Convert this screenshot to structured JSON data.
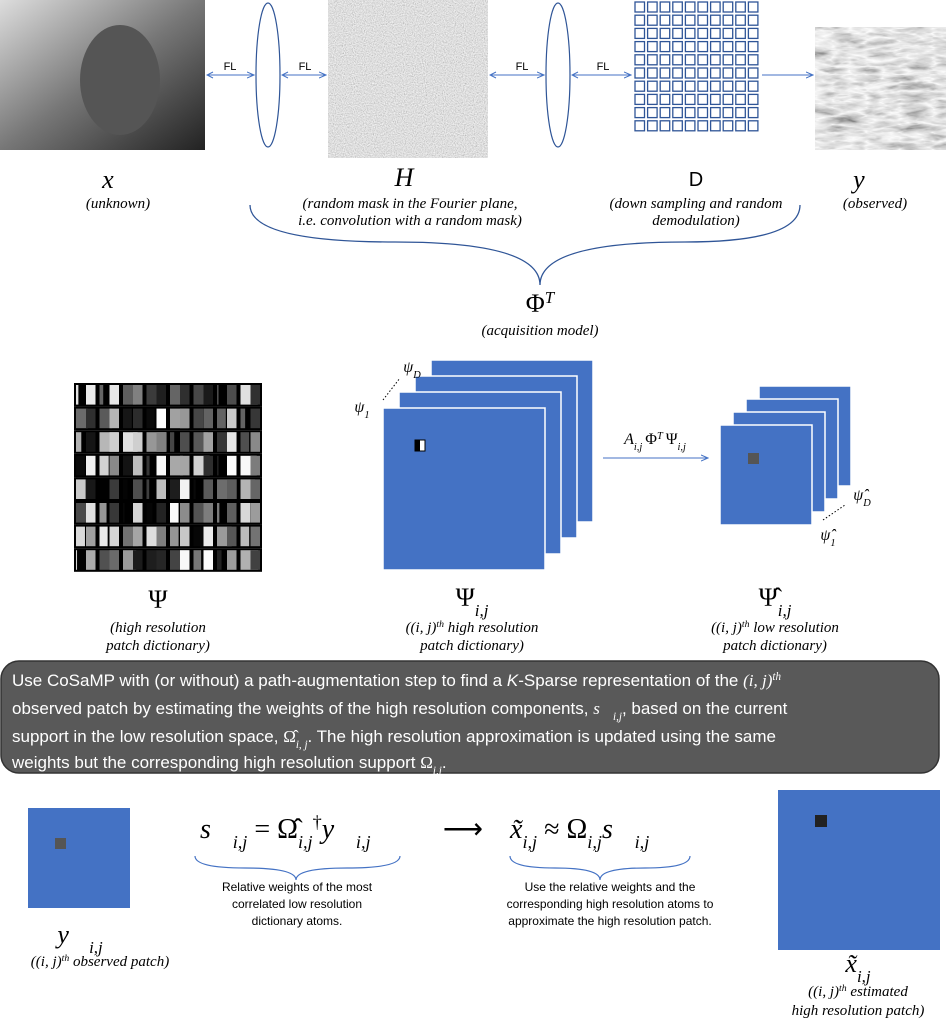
{
  "top": {
    "fl_labels": [
      "FL",
      "FL",
      "FL",
      "FL"
    ],
    "x": {
      "symbol": "x⃗",
      "caption": "(unknown)"
    },
    "h": {
      "symbol": "H",
      "caption": [
        "(random mask in the Fourier plane,",
        "i.e. convolution with a random mask)"
      ]
    },
    "d": {
      "symbol": "D",
      "caption": [
        "(down sampling and random",
        "demodulation)"
      ]
    },
    "y": {
      "symbol": "y⃗",
      "caption": "(observed)"
    },
    "phi": {
      "symbol": "Φ",
      "superscript": "T",
      "caption": "(acquisition model)"
    }
  },
  "middle": {
    "psi": {
      "symbol": "Ψ",
      "caption": [
        "(high resolution",
        "patch dictionary)"
      ]
    },
    "psi_ij": {
      "symbol": "Ψ",
      "subscript": "i,j",
      "caption_prefix": "((i, j)",
      "caption_sup": "th",
      "caption_rest": " high resolution",
      "caption2": "patch dictionary)",
      "atom_first": "ψ",
      "atom_first_sub": "1",
      "atom_last": "ψ",
      "atom_last_sub": "D"
    },
    "arrow_label": [
      "A",
      "i,j",
      "Φ",
      "T",
      "Ψ",
      "i,j"
    ],
    "psi_hat_ij": {
      "symbol": "Ψ̂",
      "subscript": "i,j",
      "caption_prefix": "((i, j)",
      "caption_sup": "th",
      "caption_rest": " low resolution",
      "caption2": "patch dictionary)",
      "atom_first": "ψ̂",
      "atom_first_sub": "1",
      "atom_last": "ψ̂",
      "atom_last_sub": "D"
    }
  },
  "box": {
    "lines": [
      [
        "Use CoSaMP with (or without) a path-augmentation step to find a ",
        "K",
        "-Sparse representation of the ",
        "(i, j)",
        "th"
      ],
      [
        "observed patch by estimating the weights of the high resolution components, ",
        "s⃗",
        "i,j",
        ", based on the current"
      ],
      [
        "support in the low resolution space, ",
        "Ω̂",
        "i, j",
        ". The high resolution approximation is updated using the same"
      ],
      [
        "weights but the corresponding high resolution support ",
        "Ω",
        "i,j",
        "."
      ]
    ]
  },
  "bottom": {
    "y_ij": {
      "symbol": "y⃗",
      "subscript": "i,j",
      "caption_prefix": "((i, j)",
      "caption_sup": "th",
      "caption_rest": " observed patch)"
    },
    "equation_left": [
      "s⃗",
      "i,j",
      " =  ",
      "Ω̂",
      "i,j",
      "†",
      "y⃗",
      "i,j"
    ],
    "arrow": "⟶",
    "equation_right": [
      "x̃",
      "i,j",
      " ≈ ",
      "Ω",
      "i,j",
      "s⃗",
      "i,j"
    ],
    "left_desc": [
      "Relative weights of the most",
      "correlated low resolution",
      "dictionary atoms."
    ],
    "right_desc": [
      "Use the relative weights and the",
      "corresponding high resolution atoms to",
      "approximate the high resolution patch."
    ],
    "x_ij": {
      "symbol": "x̃",
      "subscript": "i,j",
      "caption_prefix": "((i, j)",
      "caption_sup": "th",
      "caption_rest": " estimated",
      "caption2": "high resolution patch)"
    }
  }
}
